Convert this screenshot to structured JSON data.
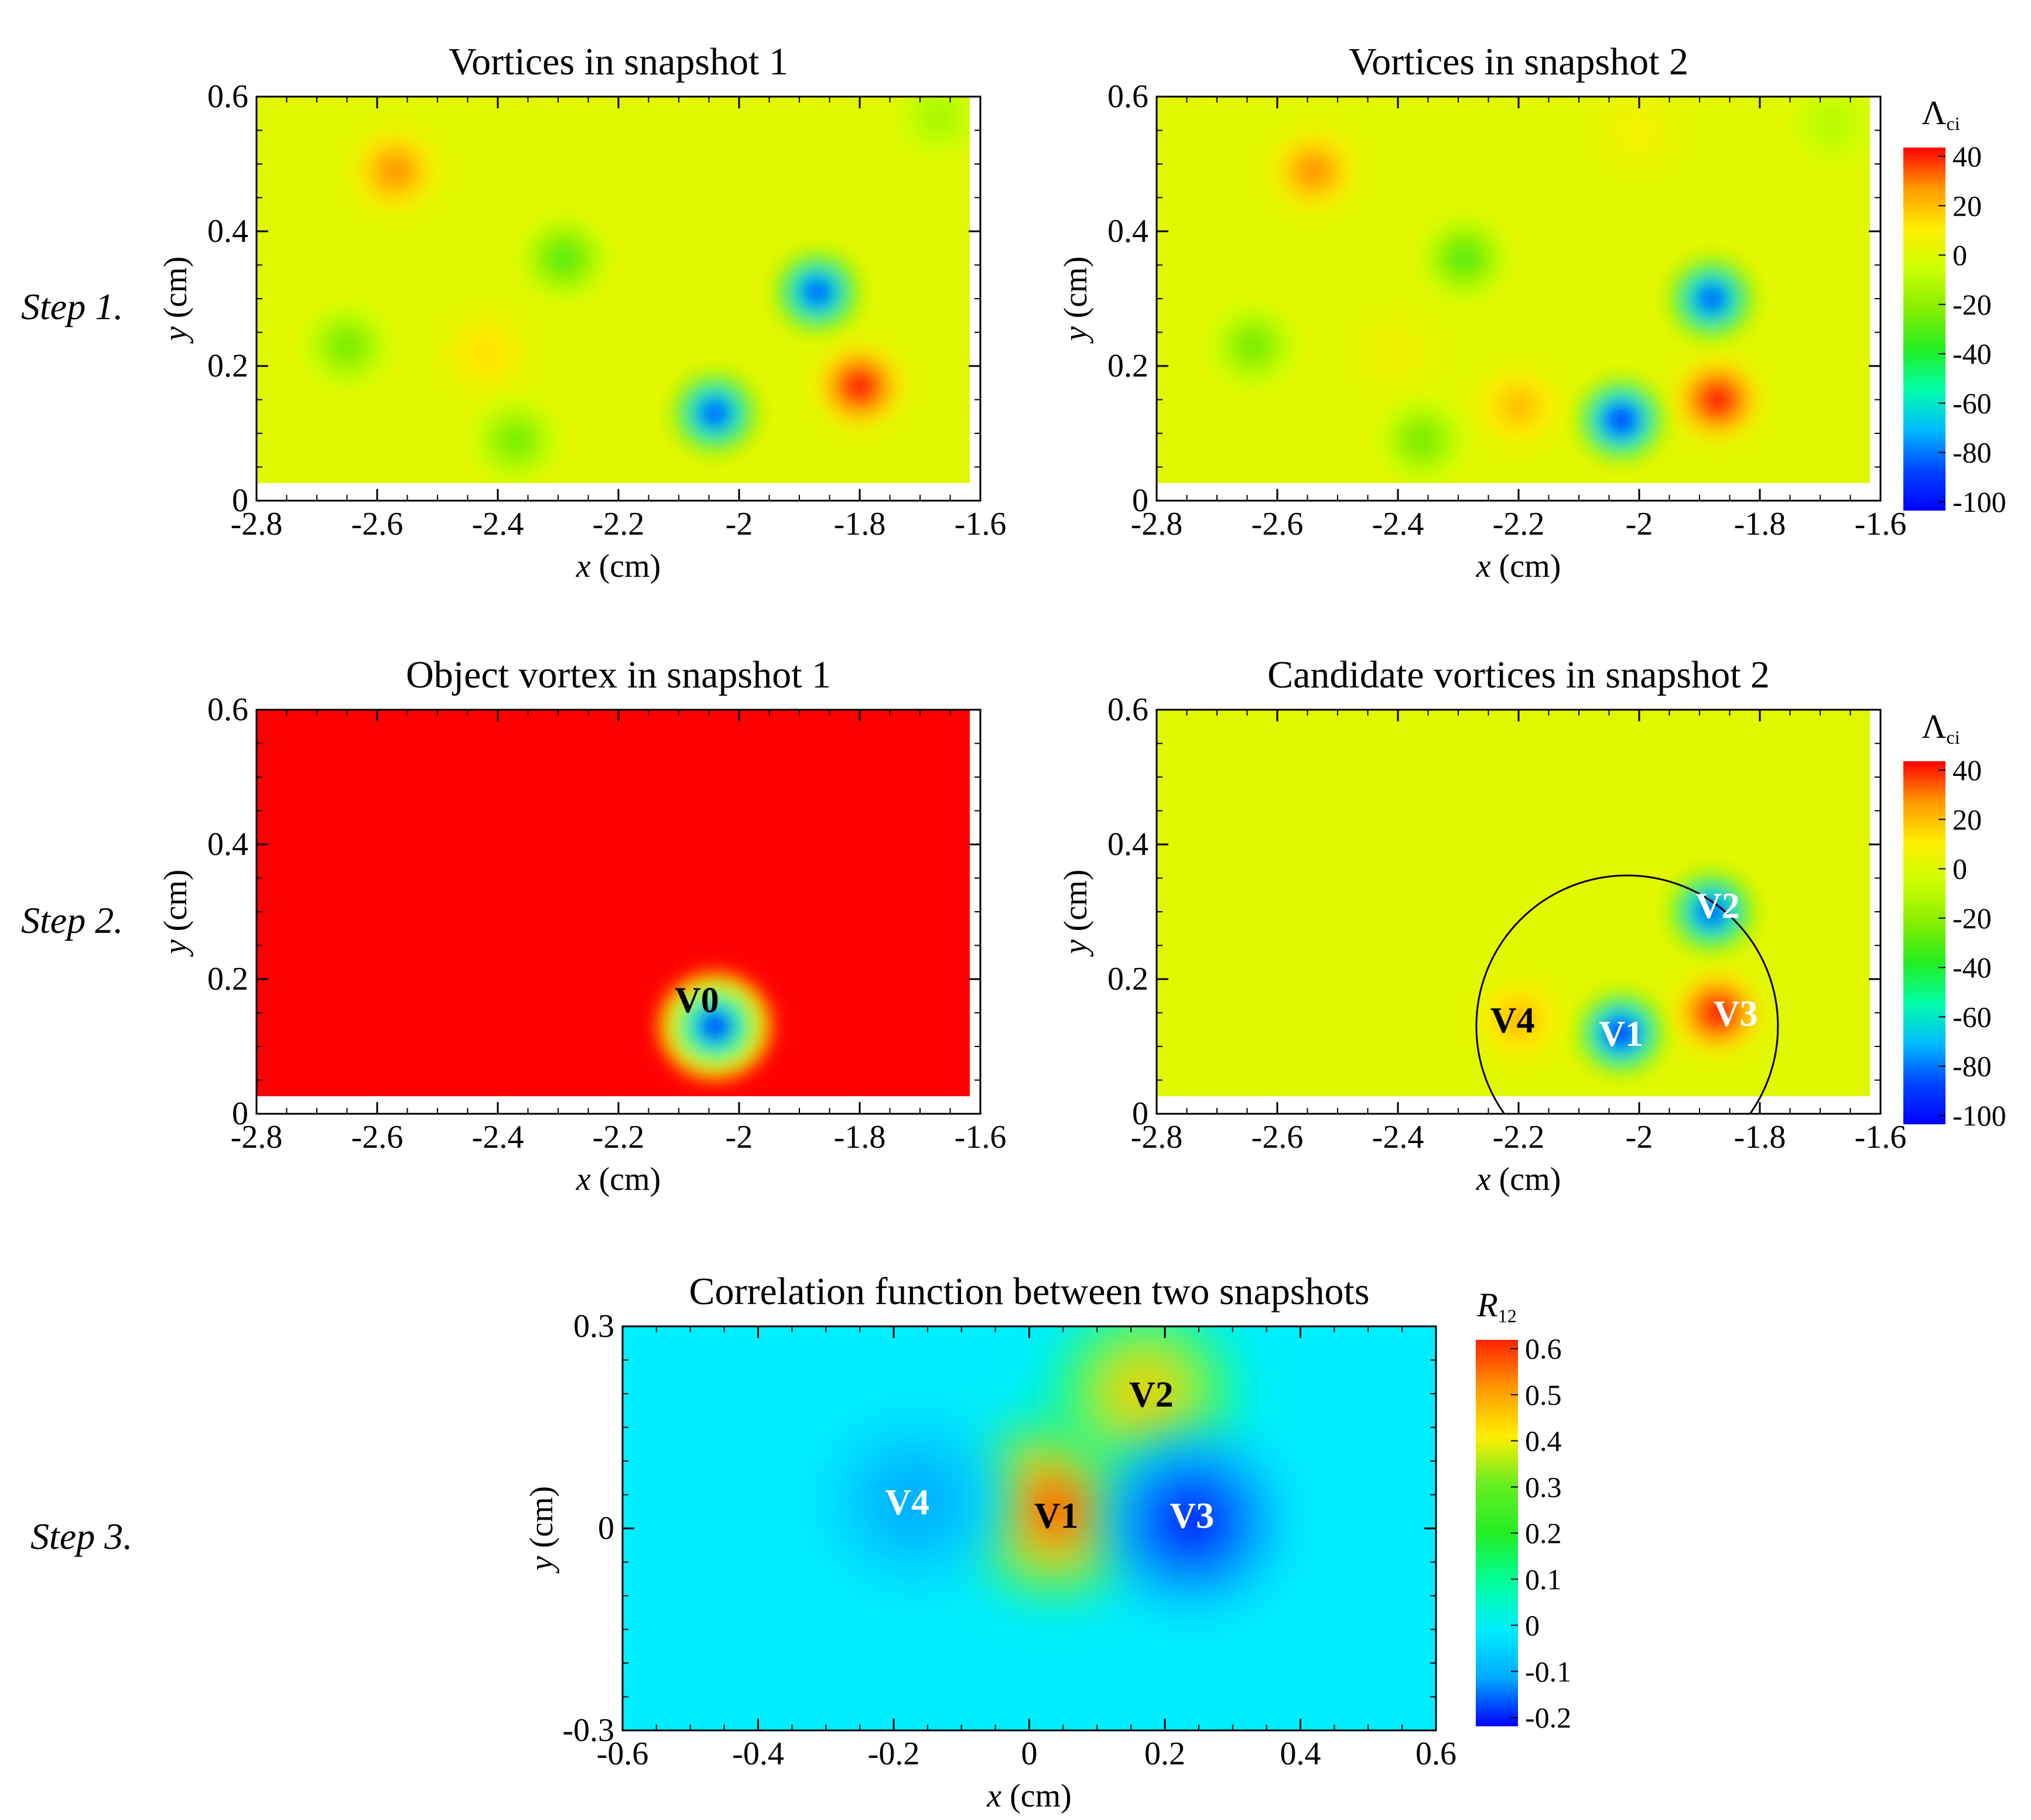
{
  "colors": {
    "lambda_background": "#ccff00",
    "object_background": "#ff0000",
    "r12_background": "#00eeff",
    "lambda_colormap": [
      "#0000ff",
      "#0044ff",
      "#00bbff",
      "#00ffaa",
      "#22ee22",
      "#88ee00",
      "#ccff00",
      "#ffee00",
      "#ff9900",
      "#ff0000"
    ],
    "r12_colormap": [
      "#0000ff",
      "#00aaff",
      "#00eeff",
      "#00ff99",
      "#22ee22",
      "#66ee22",
      "#ffee00",
      "#ff9900",
      "#ff2200"
    ]
  },
  "step_labels": [
    "Step 1.",
    "Step 2.",
    "Step 3."
  ],
  "colorbars": [
    {
      "title": "Λ",
      "subscript": "ci",
      "ticks": [
        "40",
        "20",
        "0",
        "-20",
        "-40",
        "-60",
        "-80",
        "-100"
      ]
    },
    {
      "title": "Λ",
      "subscript": "ci",
      "ticks": [
        "40",
        "20",
        "0",
        "-20",
        "-40",
        "-60",
        "-80",
        "-100"
      ]
    },
    {
      "title": "R",
      "subscript": "12",
      "ticks": [
        "0.6",
        "0.5",
        "0.4",
        "0.3",
        "0.2",
        "0.1",
        "0",
        "-0.1",
        "-0.2"
      ]
    }
  ],
  "chart_data": [
    {
      "type": "heatmap",
      "title": "Vortices in snapshot 1",
      "xlabel_var": "x",
      "xlabel_unit": " (cm)",
      "ylabel_var": "y",
      "ylabel_unit": " (cm)",
      "xlim": [
        -2.8,
        -1.6
      ],
      "ylim": [
        0,
        0.6
      ],
      "xticks": [
        "-2.8",
        "-2.6",
        "-2.4",
        "-2.2",
        "-2",
        "-1.8",
        "-1.6"
      ],
      "yticks": [
        "0",
        "0.2",
        "0.4",
        "0.6"
      ],
      "colorbar_range": [
        -100,
        40
      ],
      "background_value": 0,
      "vortices": [
        {
          "x": -2.57,
          "y": 0.49,
          "value": 25
        },
        {
          "x": -2.29,
          "y": 0.36,
          "value": -30
        },
        {
          "x": -2.65,
          "y": 0.23,
          "value": -25
        },
        {
          "x": -2.42,
          "y": 0.22,
          "value": 12
        },
        {
          "x": -2.37,
          "y": 0.09,
          "value": -25
        },
        {
          "x": -1.87,
          "y": 0.31,
          "value": -85
        },
        {
          "x": -2.04,
          "y": 0.13,
          "value": -85
        },
        {
          "x": -1.8,
          "y": 0.17,
          "value": 40
        },
        {
          "x": -1.67,
          "y": 0.57,
          "value": -15
        }
      ],
      "annotations": []
    },
    {
      "type": "heatmap",
      "title": "Vortices in snapshot 2",
      "xlabel_var": "x",
      "xlabel_unit": " (cm)",
      "ylabel_var": "y",
      "ylabel_unit": " (cm)",
      "xlim": [
        -2.8,
        -1.6
      ],
      "ylim": [
        0,
        0.6
      ],
      "xticks": [
        "-2.8",
        "-2.6",
        "-2.4",
        "-2.2",
        "-2",
        "-1.8",
        "-1.6"
      ],
      "yticks": [
        "0",
        "0.2",
        "0.4",
        "0.6"
      ],
      "colorbar_range": [
        -100,
        40
      ],
      "background_value": 0,
      "vortices": [
        {
          "x": -2.54,
          "y": 0.49,
          "value": 25
        },
        {
          "x": -2.29,
          "y": 0.36,
          "value": -30
        },
        {
          "x": -2.64,
          "y": 0.23,
          "value": -25
        },
        {
          "x": -2.4,
          "y": 0.22,
          "value": 5
        },
        {
          "x": -2.36,
          "y": 0.09,
          "value": -25
        },
        {
          "x": -2.0,
          "y": 0.55,
          "value": 6
        },
        {
          "x": -1.68,
          "y": 0.56,
          "value": -12
        },
        {
          "x": -1.88,
          "y": 0.3,
          "value": -85
        },
        {
          "x": -2.03,
          "y": 0.12,
          "value": -95
        },
        {
          "x": -1.87,
          "y": 0.15,
          "value": 40
        },
        {
          "x": -2.2,
          "y": 0.14,
          "value": 18
        }
      ],
      "annotations": []
    },
    {
      "type": "heatmap",
      "title": "Object vortex in snapshot 1",
      "xlabel_var": "x",
      "xlabel_unit": " (cm)",
      "ylabel_var": "y",
      "ylabel_unit": " (cm)",
      "xlim": [
        -2.8,
        -1.6
      ],
      "ylim": [
        0,
        0.6
      ],
      "xticks": [
        "-2.8",
        "-2.6",
        "-2.4",
        "-2.2",
        "-2",
        "-1.8",
        "-1.6"
      ],
      "yticks": [
        "0",
        "0.2",
        "0.4",
        "0.6"
      ],
      "colorbar_range": [
        -100,
        40
      ],
      "background_value": 40,
      "vortices": [
        {
          "x": -2.04,
          "y": 0.13,
          "value": -85
        }
      ],
      "annotations": [
        {
          "text": "V0",
          "x": -2.07,
          "y": 0.17,
          "color": "#000000"
        }
      ]
    },
    {
      "type": "heatmap",
      "title": "Candidate vortices in snapshot 2",
      "xlabel_var": "x",
      "xlabel_unit": " (cm)",
      "ylabel_var": "y",
      "ylabel_unit": " (cm)",
      "xlim": [
        -2.8,
        -1.6
      ],
      "ylim": [
        0,
        0.6
      ],
      "xticks": [
        "-2.8",
        "-2.6",
        "-2.4",
        "-2.2",
        "-2",
        "-1.8",
        "-1.6"
      ],
      "yticks": [
        "0",
        "0.2",
        "0.4",
        "0.6"
      ],
      "colorbar_range": [
        -100,
        40
      ],
      "background_value": 0,
      "search_circle": {
        "cx": -2.02,
        "cy": 0.13,
        "r": 0.25
      },
      "vortices": [
        {
          "x": -1.88,
          "y": 0.3,
          "value": -85
        },
        {
          "x": -2.03,
          "y": 0.12,
          "value": -95
        },
        {
          "x": -1.87,
          "y": 0.15,
          "value": 40
        },
        {
          "x": -2.2,
          "y": 0.14,
          "value": 18
        }
      ],
      "annotations": [
        {
          "text": "V2",
          "x": -1.87,
          "y": 0.31,
          "color": "#ffffff"
        },
        {
          "text": "V1",
          "x": -2.03,
          "y": 0.12,
          "color": "#ffffff"
        },
        {
          "text": "V3",
          "x": -1.84,
          "y": 0.15,
          "color": "#ffffff"
        },
        {
          "text": "V4",
          "x": -2.21,
          "y": 0.14,
          "color": "#000000"
        }
      ]
    },
    {
      "type": "heatmap",
      "title": "Correlation function between two snapshots",
      "xlabel_var": "x",
      "xlabel_unit": " (cm)",
      "ylabel_var": "y",
      "ylabel_unit": " (cm)",
      "xlim": [
        -0.6,
        0.6
      ],
      "ylim": [
        -0.3,
        0.3
      ],
      "xticks": [
        "-0.6",
        "-0.4",
        "-0.2",
        "0",
        "0.2",
        "0.4",
        "0.6"
      ],
      "yticks": [
        "-0.3",
        "0",
        "0.3"
      ],
      "colorbar_range": [
        -0.2,
        0.6
      ],
      "background_value": 0,
      "vortices": [
        {
          "x": 0.04,
          "y": 0.03,
          "value": 0.65
        },
        {
          "x": 0.17,
          "y": 0.2,
          "value": 0.45
        },
        {
          "x": 0.24,
          "y": 0.01,
          "value": -0.22
        },
        {
          "x": -0.17,
          "y": 0.04,
          "value": -0.1
        }
      ],
      "annotations": [
        {
          "text": "V2",
          "x": 0.18,
          "y": 0.2,
          "color": "#000000"
        },
        {
          "text": "V1",
          "x": 0.04,
          "y": 0.02,
          "color": "#000000"
        },
        {
          "text": "V3",
          "x": 0.24,
          "y": 0.02,
          "color": "#ffffff"
        },
        {
          "text": "V4",
          "x": -0.18,
          "y": 0.04,
          "color": "#ffffff"
        }
      ]
    }
  ]
}
